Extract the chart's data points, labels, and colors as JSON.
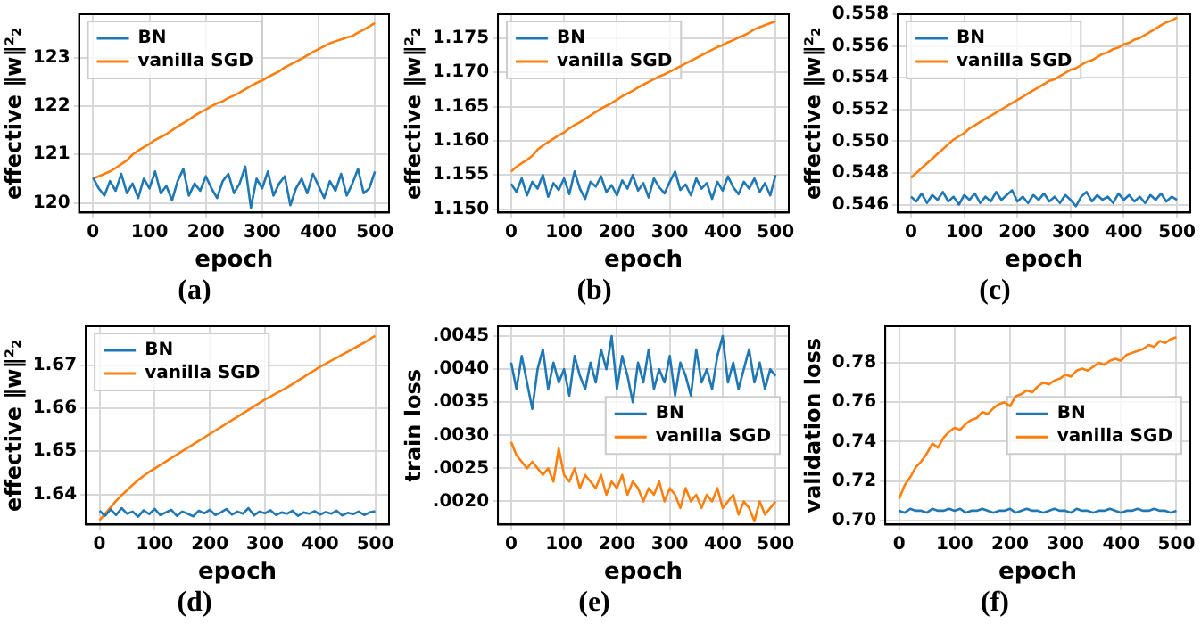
{
  "chart_data": [
    {
      "type": "line",
      "title": "(a)",
      "xlabel": "epoch",
      "ylabel": "effective ‖w‖²₂",
      "xlim": [
        -25,
        525
      ],
      "xticks": [
        0,
        100,
        200,
        300,
        400,
        500
      ],
      "ylim": [
        119.8,
        123.9
      ],
      "yticks": [
        120,
        121,
        122,
        123
      ],
      "grid": true,
      "legend": "top left",
      "x": [
        0,
        10,
        20,
        30,
        40,
        50,
        60,
        70,
        80,
        90,
        100,
        110,
        120,
        130,
        140,
        150,
        160,
        170,
        180,
        190,
        200,
        210,
        220,
        230,
        240,
        250,
        260,
        270,
        280,
        290,
        300,
        310,
        320,
        330,
        340,
        350,
        360,
        370,
        380,
        390,
        400,
        410,
        420,
        430,
        440,
        450,
        460,
        470,
        480,
        490,
        500
      ],
      "series": [
        {
          "name": "BN",
          "color": "#1f77b4",
          "values": [
            120.52,
            120.3,
            120.15,
            120.45,
            120.25,
            120.6,
            120.2,
            120.4,
            120.1,
            120.5,
            120.3,
            120.65,
            120.2,
            120.35,
            120.05,
            120.45,
            120.7,
            120.15,
            120.4,
            120.25,
            120.55,
            120.3,
            120.1,
            120.45,
            120.6,
            120.2,
            120.4,
            120.75,
            119.9,
            120.5,
            120.3,
            120.65,
            120.15,
            120.4,
            120.55,
            119.95,
            120.3,
            120.5,
            120.2,
            120.6,
            120.35,
            120.1,
            120.45,
            120.25,
            120.6,
            120.15,
            120.4,
            120.7,
            120.2,
            120.3,
            120.65
          ]
        },
        {
          "name": "vanilla SGD",
          "color": "#ff7f0e",
          "values": [
            120.5,
            120.55,
            120.6,
            120.65,
            120.72,
            120.8,
            120.88,
            121.0,
            121.08,
            121.15,
            121.22,
            121.3,
            121.36,
            121.42,
            121.5,
            121.58,
            121.65,
            121.72,
            121.8,
            121.87,
            121.93,
            122.0,
            122.06,
            122.1,
            122.17,
            122.22,
            122.28,
            122.35,
            122.42,
            122.48,
            122.53,
            122.6,
            122.66,
            122.72,
            122.8,
            122.86,
            122.92,
            122.98,
            123.05,
            123.12,
            123.18,
            123.24,
            123.3,
            123.34,
            123.38,
            123.42,
            123.45,
            123.52,
            123.58,
            123.65,
            123.72
          ]
        }
      ]
    },
    {
      "type": "line",
      "title": "(b)",
      "xlabel": "epoch",
      "ylabel": "effective ‖w‖²₂",
      "xlim": [
        -25,
        525
      ],
      "xticks": [
        0,
        100,
        200,
        300,
        400,
        500
      ],
      "ylim": [
        1.1495,
        1.1785
      ],
      "yticks": [
        {
          "value": 1.15,
          "label": "1.150"
        },
        1.155,
        {
          "value": 1.16,
          "label": "1.160"
        },
        1.165,
        {
          "value": 1.17,
          "label": "1.170"
        },
        1.175
      ],
      "grid": true,
      "legend": "top left",
      "x": [
        0,
        10,
        20,
        30,
        40,
        50,
        60,
        70,
        80,
        90,
        100,
        110,
        120,
        130,
        140,
        150,
        160,
        170,
        180,
        190,
        200,
        210,
        220,
        230,
        240,
        250,
        260,
        270,
        280,
        290,
        300,
        310,
        320,
        330,
        340,
        350,
        360,
        370,
        380,
        390,
        400,
        410,
        420,
        430,
        440,
        450,
        460,
        470,
        480,
        490,
        500
      ],
      "series": [
        {
          "name": "BN",
          "color": "#1f77b4",
          "values": [
            1.1537,
            1.1525,
            1.1545,
            1.152,
            1.154,
            1.153,
            1.155,
            1.1518,
            1.1538,
            1.1528,
            1.1545,
            1.1522,
            1.1555,
            1.153,
            1.1515,
            1.154,
            1.1533,
            1.1548,
            1.1525,
            1.1535,
            1.152,
            1.1542,
            1.153,
            1.155,
            1.1527,
            1.1538,
            1.1517,
            1.1545,
            1.1532,
            1.1523,
            1.154,
            1.1555,
            1.1528,
            1.1536,
            1.152,
            1.1545,
            1.153,
            1.1538,
            1.1515,
            1.154,
            1.1527,
            1.1548,
            1.1532,
            1.1522,
            1.154,
            1.153,
            1.1545,
            1.1525,
            1.1538,
            1.152,
            1.155
          ]
        },
        {
          "name": "vanilla SGD",
          "color": "#ff7f0e",
          "values": [
            1.1555,
            1.1562,
            1.1567,
            1.1572,
            1.1578,
            1.1587,
            1.1593,
            1.1598,
            1.1603,
            1.1608,
            1.1612,
            1.1618,
            1.1623,
            1.1627,
            1.1632,
            1.1637,
            1.1642,
            1.1647,
            1.1651,
            1.1655,
            1.166,
            1.1665,
            1.1669,
            1.1673,
            1.1678,
            1.1682,
            1.1686,
            1.169,
            1.1694,
            1.1697,
            1.1701,
            1.1705,
            1.1709,
            1.1713,
            1.1717,
            1.1721,
            1.1725,
            1.1729,
            1.1733,
            1.1737,
            1.174,
            1.1744,
            1.1747,
            1.1751,
            1.1754,
            1.1758,
            1.1763,
            1.1766,
            1.1769,
            1.1772,
            1.1775
          ]
        }
      ]
    },
    {
      "type": "line",
      "title": "(c)",
      "xlabel": "epoch",
      "ylabel": "effective ‖w‖²₂",
      "xlim": [
        -25,
        525
      ],
      "xticks": [
        0,
        100,
        200,
        300,
        400,
        500
      ],
      "ylim": [
        0.5455,
        0.558
      ],
      "yticks": [
        0.546,
        0.548,
        {
          "value": 0.55,
          "label": "0.550"
        },
        0.552,
        0.554,
        0.556,
        0.558
      ],
      "grid": true,
      "legend": "top left",
      "x": [
        0,
        10,
        20,
        30,
        40,
        50,
        60,
        70,
        80,
        90,
        100,
        110,
        120,
        130,
        140,
        150,
        160,
        170,
        180,
        190,
        200,
        210,
        220,
        230,
        240,
        250,
        260,
        270,
        280,
        290,
        300,
        310,
        320,
        330,
        340,
        350,
        360,
        370,
        380,
        390,
        400,
        410,
        420,
        430,
        440,
        450,
        460,
        470,
        480,
        490,
        500
      ],
      "series": [
        {
          "name": "BN",
          "color": "#1f77b4",
          "values": [
            0.5465,
            0.5462,
            0.5467,
            0.5461,
            0.5466,
            0.5463,
            0.5468,
            0.5462,
            0.5465,
            0.546,
            0.5466,
            0.5463,
            0.5467,
            0.5461,
            0.5465,
            0.5462,
            0.5468,
            0.5463,
            0.5466,
            0.5469,
            0.5462,
            0.5465,
            0.5461,
            0.5466,
            0.5463,
            0.5467,
            0.5462,
            0.5465,
            0.5461,
            0.5466,
            0.5463,
            0.5459,
            0.5465,
            0.5468,
            0.5462,
            0.5466,
            0.5463,
            0.5465,
            0.5461,
            0.5467,
            0.5463,
            0.5466,
            0.5462,
            0.5465,
            0.5461,
            0.5466,
            0.5463,
            0.5467,
            0.5462,
            0.5465,
            0.5463
          ]
        },
        {
          "name": "vanilla SGD",
          "color": "#ff7f0e",
          "values": [
            0.5477,
            0.548,
            0.5483,
            0.5486,
            0.5489,
            0.5492,
            0.5495,
            0.5498,
            0.5501,
            0.5503,
            0.5505,
            0.5508,
            0.551,
            0.5512,
            0.5514,
            0.5516,
            0.5518,
            0.552,
            0.5522,
            0.5524,
            0.5526,
            0.5528,
            0.553,
            0.5532,
            0.5534,
            0.5536,
            0.5538,
            0.5539,
            0.5541,
            0.5543,
            0.5545,
            0.5546,
            0.5548,
            0.555,
            0.5551,
            0.5553,
            0.5555,
            0.5556,
            0.5558,
            0.5559,
            0.5561,
            0.5562,
            0.5564,
            0.5565,
            0.5567,
            0.5569,
            0.5571,
            0.5573,
            0.5575,
            0.5576,
            0.5578
          ]
        }
      ]
    },
    {
      "type": "line",
      "title": "(d)",
      "xlabel": "epoch",
      "ylabel": "effective ‖w‖²₂",
      "xlim": [
        -25,
        525
      ],
      "xticks": [
        0,
        100,
        200,
        300,
        400,
        500
      ],
      "ylim": [
        1.633,
        1.679
      ],
      "yticks": [
        1.64,
        1.65,
        1.66,
        1.67
      ],
      "grid": true,
      "legend": "top left",
      "x": [
        0,
        10,
        20,
        30,
        40,
        50,
        60,
        70,
        80,
        90,
        100,
        110,
        120,
        130,
        140,
        150,
        160,
        170,
        180,
        190,
        200,
        210,
        220,
        230,
        240,
        250,
        260,
        270,
        280,
        290,
        300,
        310,
        320,
        330,
        340,
        350,
        360,
        370,
        380,
        390,
        400,
        410,
        420,
        430,
        440,
        450,
        460,
        470,
        480,
        490,
        500
      ],
      "series": [
        {
          "name": "BN",
          "color": "#1f77b4",
          "values": [
            1.6362,
            1.635,
            1.6365,
            1.6352,
            1.6368,
            1.6355,
            1.636,
            1.6348,
            1.6363,
            1.6354,
            1.6366,
            1.6352,
            1.6358,
            1.6364,
            1.635,
            1.636,
            1.6355,
            1.6349,
            1.6362,
            1.6356,
            1.6364,
            1.6352,
            1.6358,
            1.6366,
            1.6353,
            1.636,
            1.6355,
            1.6368,
            1.6351,
            1.636,
            1.6356,
            1.6363,
            1.6352,
            1.6358,
            1.6355,
            1.6362,
            1.635,
            1.6358,
            1.6355,
            1.6361,
            1.6353,
            1.6359,
            1.6355,
            1.6362,
            1.6351,
            1.6357,
            1.6354,
            1.636,
            1.6352,
            1.6358,
            1.6361
          ]
        },
        {
          "name": "vanilla SGD",
          "color": "#ff7f0e",
          "values": [
            1.634,
            1.6355,
            1.637,
            1.6385,
            1.6398,
            1.641,
            1.6422,
            1.6433,
            1.6443,
            1.6452,
            1.646,
            1.6468,
            1.6476,
            1.6484,
            1.6492,
            1.65,
            1.6508,
            1.6516,
            1.6524,
            1.6532,
            1.654,
            1.6548,
            1.6556,
            1.6564,
            1.6572,
            1.658,
            1.6588,
            1.6596,
            1.6604,
            1.6612,
            1.662,
            1.6627,
            1.6634,
            1.6641,
            1.6648,
            1.6656,
            1.6664,
            1.6672,
            1.668,
            1.6688,
            1.6696,
            1.6703,
            1.671,
            1.6717,
            1.6724,
            1.6731,
            1.6738,
            1.6745,
            1.6752,
            1.676,
            1.6768
          ]
        }
      ]
    },
    {
      "type": "line",
      "title": "(e)",
      "xlabel": "epoch",
      "ylabel": "train loss",
      "xlim": [
        -25,
        525
      ],
      "xticks": [
        0,
        100,
        200,
        300,
        400,
        500
      ],
      "ylim": [
        0.00165,
        0.00465
      ],
      "yticks": [
        {
          "value": 0.002,
          "label": ".0020"
        },
        {
          "value": 0.0025,
          "label": ".0025"
        },
        {
          "value": 0.003,
          "label": ".0030"
        },
        {
          "value": 0.0035,
          "label": ".0035"
        },
        {
          "value": 0.004,
          "label": ".0040"
        },
        {
          "value": 0.0045,
          "label": ".0045"
        }
      ],
      "grid": true,
      "legend": "right",
      "x": [
        0,
        10,
        20,
        30,
        40,
        50,
        60,
        70,
        80,
        90,
        100,
        110,
        120,
        130,
        140,
        150,
        160,
        170,
        180,
        190,
        200,
        210,
        220,
        230,
        240,
        250,
        260,
        270,
        280,
        290,
        300,
        310,
        320,
        330,
        340,
        350,
        360,
        370,
        380,
        390,
        400,
        410,
        420,
        430,
        440,
        450,
        460,
        470,
        480,
        490,
        500
      ],
      "series": [
        {
          "name": "BN",
          "color": "#1f77b4",
          "values": [
            0.0041,
            0.0037,
            0.0042,
            0.0038,
            0.0034,
            0.004,
            0.0043,
            0.0037,
            0.0041,
            0.0038,
            0.004,
            0.0036,
            0.0042,
            0.0039,
            0.0037,
            0.0041,
            0.0038,
            0.0043,
            0.004,
            0.0045,
            0.0037,
            0.0042,
            0.0039,
            0.0035,
            0.0041,
            0.0038,
            0.0043,
            0.0037,
            0.004,
            0.0038,
            0.0042,
            0.0036,
            0.0041,
            0.0039,
            0.0036,
            0.0043,
            0.0038,
            0.004,
            0.0037,
            0.0042,
            0.0045,
            0.0038,
            0.0041,
            0.0037,
            0.004,
            0.0043,
            0.0038,
            0.0041,
            0.0037,
            0.004,
            0.0039
          ]
        },
        {
          "name": "vanilla SGD",
          "color": "#ff7f0e",
          "values": [
            0.0029,
            0.0027,
            0.0026,
            0.0025,
            0.0026,
            0.0025,
            0.0024,
            0.0025,
            0.0023,
            0.0028,
            0.0024,
            0.0023,
            0.0025,
            0.0022,
            0.0024,
            0.0023,
            0.0022,
            0.0024,
            0.0021,
            0.0023,
            0.0022,
            0.0024,
            0.0021,
            0.0023,
            0.0022,
            0.002,
            0.0022,
            0.0021,
            0.0023,
            0.002,
            0.0022,
            0.0021,
            0.0019,
            0.0022,
            0.002,
            0.0021,
            0.0019,
            0.0021,
            0.002,
            0.0022,
            0.0019,
            0.002,
            0.0021,
            0.0018,
            0.002,
            0.0019,
            0.0017,
            0.002,
            0.0018,
            0.0019,
            0.002
          ]
        }
      ]
    },
    {
      "type": "line",
      "title": "(f)",
      "xlabel": "epoch",
      "ylabel": "validation loss",
      "xlim": [
        -25,
        525
      ],
      "xticks": [
        0,
        100,
        200,
        300,
        400,
        500
      ],
      "ylim": [
        0.698,
        0.7985
      ],
      "yticks": [
        {
          "value": 0.7,
          "label": "0.70"
        },
        0.72,
        0.74,
        0.76,
        0.78
      ],
      "grid": true,
      "legend": "right",
      "x": [
        0,
        10,
        20,
        30,
        40,
        50,
        60,
        70,
        80,
        90,
        100,
        110,
        120,
        130,
        140,
        150,
        160,
        170,
        180,
        190,
        200,
        210,
        220,
        230,
        240,
        250,
        260,
        270,
        280,
        290,
        300,
        310,
        320,
        330,
        340,
        350,
        360,
        370,
        380,
        390,
        400,
        410,
        420,
        430,
        440,
        450,
        460,
        470,
        480,
        490,
        500
      ],
      "series": [
        {
          "name": "BN",
          "color": "#1f77b4",
          "values": [
            0.705,
            0.704,
            0.706,
            0.705,
            0.705,
            0.704,
            0.706,
            0.705,
            0.705,
            0.706,
            0.705,
            0.706,
            0.704,
            0.705,
            0.705,
            0.706,
            0.705,
            0.704,
            0.705,
            0.705,
            0.706,
            0.704,
            0.705,
            0.706,
            0.705,
            0.705,
            0.704,
            0.705,
            0.706,
            0.705,
            0.705,
            0.704,
            0.706,
            0.705,
            0.705,
            0.704,
            0.705,
            0.705,
            0.706,
            0.705,
            0.704,
            0.705,
            0.705,
            0.706,
            0.705,
            0.705,
            0.706,
            0.705,
            0.705,
            0.704,
            0.705
          ]
        },
        {
          "name": "vanilla SGD",
          "color": "#ff7f0e",
          "values": [
            0.711,
            0.718,
            0.722,
            0.727,
            0.73,
            0.734,
            0.739,
            0.737,
            0.742,
            0.745,
            0.747,
            0.746,
            0.749,
            0.751,
            0.752,
            0.755,
            0.754,
            0.757,
            0.759,
            0.76,
            0.758,
            0.763,
            0.764,
            0.766,
            0.765,
            0.768,
            0.77,
            0.769,
            0.771,
            0.772,
            0.774,
            0.773,
            0.776,
            0.777,
            0.776,
            0.778,
            0.78,
            0.779,
            0.781,
            0.782,
            0.781,
            0.784,
            0.785,
            0.786,
            0.787,
            0.789,
            0.788,
            0.791,
            0.79,
            0.792,
            0.793
          ]
        }
      ]
    }
  ]
}
